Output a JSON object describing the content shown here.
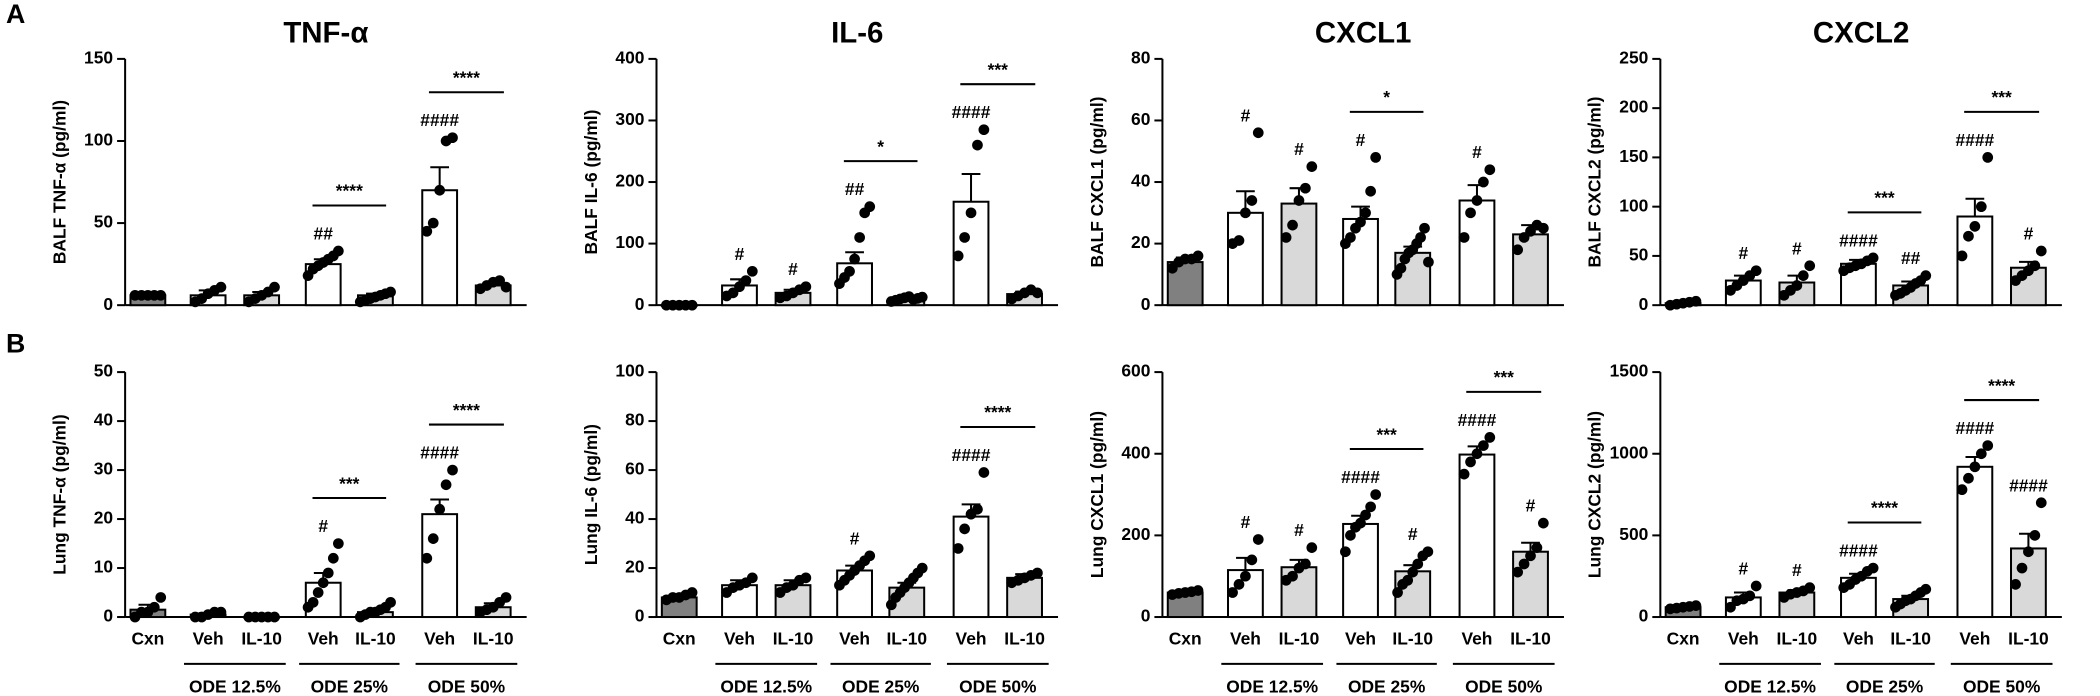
{
  "panel_labels": [
    "A",
    "B"
  ],
  "chart_data": [
    {
      "type": "bar",
      "title": "TNF-α",
      "y_label": "BALF TNF-α (pg/ml)",
      "ylim": [
        0,
        150
      ],
      "yticks": [
        0,
        50,
        100,
        150
      ],
      "colors": [
        "#808080",
        "#ffffff",
        "#d9d9d9",
        "#ffffff",
        "#d9d9d9",
        "#ffffff",
        "#d9d9d9"
      ],
      "values": [
        6,
        6,
        6,
        25,
        6,
        70,
        12
      ],
      "errors": [
        1,
        3,
        2,
        3,
        1,
        14,
        2
      ],
      "points": [
        [
          6,
          6,
          6,
          6,
          6
        ],
        [
          2,
          4,
          7,
          9,
          11
        ],
        [
          2,
          4,
          6,
          8,
          11
        ],
        [
          18,
          22,
          24,
          26,
          28,
          30,
          33
        ],
        [
          2,
          3,
          4,
          5,
          6,
          7,
          8
        ],
        [
          45,
          50,
          70,
          100,
          102
        ],
        [
          10,
          12,
          14,
          15,
          11
        ]
      ],
      "hash_labels": [
        null,
        null,
        null,
        "##",
        null,
        "####",
        null
      ],
      "significance": [
        null,
        null,
        null,
        null,
        "****",
        null,
        "****"
      ]
    },
    {
      "type": "bar",
      "title": "IL-6",
      "y_label": "BALF IL-6 (pg/ml)",
      "ylim": [
        0,
        400
      ],
      "yticks": [
        0,
        100,
        200,
        300,
        400
      ],
      "colors": [
        "#808080",
        "#ffffff",
        "#d9d9d9",
        "#ffffff",
        "#d9d9d9",
        "#ffffff",
        "#d9d9d9"
      ],
      "values": [
        0,
        32,
        20,
        68,
        10,
        168,
        18
      ],
      "errors": [
        1,
        10,
        5,
        18,
        2,
        45,
        4
      ],
      "points": [
        [
          0,
          0,
          0,
          0,
          0
        ],
        [
          15,
          20,
          30,
          40,
          55
        ],
        [
          12,
          15,
          20,
          25,
          30
        ],
        [
          35,
          45,
          55,
          75,
          110,
          150,
          160
        ],
        [
          6,
          8,
          10,
          12,
          14,
          9,
          11,
          13
        ],
        [
          80,
          110,
          150,
          260,
          285
        ],
        [
          10,
          15,
          20,
          25,
          20
        ]
      ],
      "hash_labels": [
        null,
        "#",
        "#",
        "##",
        null,
        "####",
        null
      ],
      "significance": [
        null,
        null,
        null,
        null,
        "*",
        null,
        "***"
      ]
    },
    {
      "type": "bar",
      "title": "CXCL1",
      "y_label": "BALF CXCL1 (pg/ml)",
      "ylim": [
        0,
        80
      ],
      "yticks": [
        0,
        20,
        40,
        60,
        80
      ],
      "colors": [
        "#808080",
        "#ffffff",
        "#d9d9d9",
        "#ffffff",
        "#d9d9d9",
        "#ffffff",
        "#d9d9d9"
      ],
      "values": [
        14,
        30,
        33,
        28,
        17,
        34,
        23
      ],
      "errors": [
        1.5,
        7,
        5,
        4,
        2,
        5,
        3
      ],
      "points": [
        [
          12,
          14,
          15,
          15,
          16
        ],
        [
          20,
          21,
          30,
          34,
          56
        ],
        [
          22,
          26,
          34,
          38,
          45
        ],
        [
          20,
          22,
          25,
          27,
          30,
          37,
          48
        ],
        [
          10,
          12,
          15,
          17,
          18,
          20,
          22,
          25,
          14
        ],
        [
          22,
          30,
          34,
          40,
          44
        ],
        [
          18,
          22,
          24,
          26,
          25
        ]
      ],
      "hash_labels": [
        null,
        "#",
        "#",
        "#",
        null,
        "#",
        null
      ],
      "significance": [
        null,
        null,
        null,
        null,
        "*",
        null,
        null
      ]
    },
    {
      "type": "bar",
      "title": "CXCL2",
      "y_label": "BALF CXCL2 (pg/ml)",
      "ylim": [
        0,
        250
      ],
      "yticks": [
        0,
        50,
        100,
        150,
        200,
        250
      ],
      "colors": [
        "#808080",
        "#ffffff",
        "#d9d9d9",
        "#ffffff",
        "#d9d9d9",
        "#ffffff",
        "#d9d9d9"
      ],
      "values": [
        2,
        25,
        23,
        42,
        20,
        90,
        38
      ],
      "errors": [
        1,
        5,
        7,
        4,
        4,
        18,
        6
      ],
      "points": [
        [
          0,
          1,
          2,
          3,
          4
        ],
        [
          15,
          20,
          25,
          30,
          35
        ],
        [
          10,
          15,
          20,
          30,
          40
        ],
        [
          35,
          38,
          40,
          42,
          45,
          48
        ],
        [
          10,
          12,
          15,
          18,
          22,
          25,
          30
        ],
        [
          50,
          70,
          80,
          100,
          150
        ],
        [
          25,
          30,
          35,
          40,
          55
        ]
      ],
      "hash_labels": [
        null,
        "#",
        "#",
        "####",
        "##",
        "####",
        "#"
      ],
      "significance": [
        null,
        null,
        null,
        null,
        "***",
        null,
        "***"
      ]
    },
    {
      "type": "bar",
      "y_label": "Lung TNF-α (pg/ml)",
      "ylim": [
        0,
        50
      ],
      "yticks": [
        0,
        10,
        20,
        30,
        40,
        50
      ],
      "categories": [
        "Cxn",
        "Veh",
        "IL-10",
        "Veh",
        "IL-10",
        "Veh",
        "IL-10"
      ],
      "groups": [
        "ODE 12.5%",
        "ODE 25%",
        "ODE 50%"
      ],
      "colors": [
        "#808080",
        "#ffffff",
        "#d9d9d9",
        "#ffffff",
        "#d9d9d9",
        "#ffffff",
        "#d9d9d9"
      ],
      "values": [
        1.5,
        0.5,
        0,
        7,
        1,
        21,
        2
      ],
      "errors": [
        1,
        0.3,
        0,
        2,
        0.3,
        3,
        0.8
      ],
      "points": [
        [
          0,
          1,
          1,
          2,
          4
        ],
        [
          0,
          0,
          0.5,
          1,
          1
        ],
        [
          0,
          0,
          0,
          0,
          0
        ],
        [
          2,
          3,
          5,
          7,
          9,
          12,
          15
        ],
        [
          0,
          0.5,
          1,
          1,
          1.5,
          2,
          3
        ],
        [
          12,
          16,
          22,
          27,
          30
        ],
        [
          1,
          1.5,
          2,
          3,
          4
        ]
      ],
      "hash_labels": [
        null,
        null,
        null,
        "#",
        null,
        "####",
        null
      ],
      "significance": [
        null,
        null,
        null,
        null,
        "***",
        null,
        "****"
      ]
    },
    {
      "type": "bar",
      "y_label": "Lung IL-6 (pg/ml)",
      "ylim": [
        0,
        100
      ],
      "yticks": [
        0,
        20,
        40,
        60,
        80,
        100
      ],
      "categories": [
        "Cxn",
        "Veh",
        "IL-10",
        "Veh",
        "IL-10",
        "Veh",
        "IL-10"
      ],
      "groups": [
        "ODE 12.5%",
        "ODE 25%",
        "ODE 50%"
      ],
      "colors": [
        "#808080",
        "#ffffff",
        "#d9d9d9",
        "#ffffff",
        "#d9d9d9",
        "#ffffff",
        "#d9d9d9"
      ],
      "values": [
        8,
        13,
        13,
        19,
        12,
        41,
        16
      ],
      "errors": [
        1,
        2,
        2,
        2,
        2,
        5,
        1.5
      ],
      "points": [
        [
          7,
          8,
          8,
          9,
          10
        ],
        [
          10,
          12,
          13,
          14,
          16
        ],
        [
          10,
          12,
          13,
          15,
          16
        ],
        [
          13,
          15,
          17,
          19,
          21,
          23,
          25
        ],
        [
          5,
          8,
          10,
          12,
          14,
          16,
          18,
          20
        ],
        [
          28,
          36,
          42,
          44,
          59
        ],
        [
          14,
          15,
          16,
          17,
          18
        ]
      ],
      "hash_labels": [
        null,
        null,
        null,
        "#",
        null,
        "####",
        null
      ],
      "significance": [
        null,
        null,
        null,
        null,
        null,
        null,
        "****"
      ]
    },
    {
      "type": "bar",
      "y_label": "Lung CXCL1 (pg/ml)",
      "ylim": [
        0,
        600
      ],
      "yticks": [
        0,
        200,
        400,
        600
      ],
      "categories": [
        "Cxn",
        "Veh",
        "IL-10",
        "Veh",
        "IL-10",
        "Veh",
        "IL-10"
      ],
      "groups": [
        "ODE 12.5%",
        "ODE 25%",
        "ODE 50%"
      ],
      "colors": [
        "#808080",
        "#ffffff",
        "#d9d9d9",
        "#ffffff",
        "#d9d9d9",
        "#ffffff",
        "#d9d9d9"
      ],
      "values": [
        60,
        115,
        122,
        228,
        112,
        398,
        160
      ],
      "errors": [
        5,
        30,
        18,
        20,
        15,
        20,
        22
      ],
      "points": [
        [
          55,
          58,
          60,
          62,
          65
        ],
        [
          60,
          80,
          100,
          140,
          190
        ],
        [
          90,
          100,
          120,
          130,
          170
        ],
        [
          160,
          200,
          220,
          230,
          250,
          270,
          300
        ],
        [
          60,
          80,
          90,
          110,
          130,
          150,
          160
        ],
        [
          350,
          380,
          400,
          420,
          440
        ],
        [
          110,
          130,
          150,
          170,
          230
        ]
      ],
      "hash_labels": [
        null,
        "#",
        "#",
        "####",
        "#",
        "####",
        "#"
      ],
      "significance": [
        null,
        null,
        null,
        null,
        "***",
        null,
        "***"
      ]
    },
    {
      "type": "bar",
      "y_label": "Lung CXCL2 (pg/ml)",
      "ylim": [
        0,
        1500
      ],
      "yticks": [
        0,
        500,
        1000,
        1500
      ],
      "categories": [
        "Cxn",
        "Veh",
        "IL-10",
        "Veh",
        "IL-10",
        "Veh",
        "IL-10"
      ],
      "groups": [
        "ODE 12.5%",
        "ODE 25%",
        "ODE 50%"
      ],
      "colors": [
        "#808080",
        "#ffffff",
        "#d9d9d9",
        "#ffffff",
        "#d9d9d9",
        "#ffffff",
        "#d9d9d9"
      ],
      "values": [
        60,
        120,
        150,
        240,
        110,
        920,
        420
      ],
      "errors": [
        8,
        30,
        15,
        25,
        20,
        60,
        90
      ],
      "points": [
        [
          50,
          55,
          60,
          65,
          70
        ],
        [
          60,
          100,
          110,
          130,
          190
        ],
        [
          120,
          140,
          150,
          160,
          180
        ],
        [
          180,
          200,
          230,
          250,
          280,
          300
        ],
        [
          60,
          80,
          100,
          110,
          130,
          150,
          170
        ],
        [
          780,
          850,
          920,
          1000,
          1050
        ],
        [
          200,
          300,
          400,
          500,
          700
        ]
      ],
      "hash_labels": [
        null,
        "#",
        "#",
        "####",
        null,
        "####",
        "####"
      ],
      "significance": [
        null,
        null,
        null,
        null,
        "****",
        null,
        "****"
      ]
    }
  ]
}
